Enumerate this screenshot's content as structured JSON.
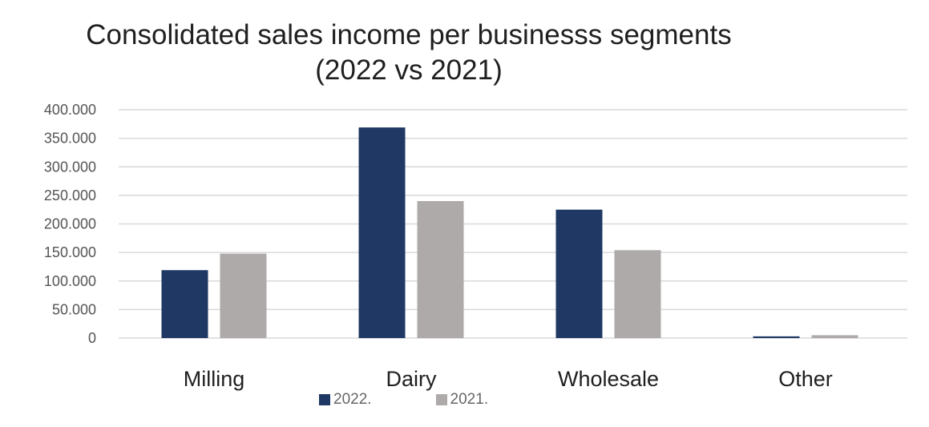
{
  "chart_data": {
    "type": "bar",
    "title": "Consolidated sales income per businesss segments",
    "subtitle": "(2022 vs 2021)",
    "categories": [
      "Milling",
      "Dairy",
      "Wholesale",
      "Other"
    ],
    "series": [
      {
        "name": "2022.",
        "color": "#1f3864",
        "values": [
          119000,
          369000,
          225000,
          3000
        ]
      },
      {
        "name": "2021.",
        "color": "#aeaaaa",
        "values": [
          148000,
          240000,
          154000,
          5000
        ]
      }
    ],
    "ylim": [
      0,
      400000
    ],
    "yticks": [
      {
        "value": 0,
        "label": "0"
      },
      {
        "value": 50000,
        "label": "50.000"
      },
      {
        "value": 100000,
        "label": "100.000"
      },
      {
        "value": 150000,
        "label": "150.000"
      },
      {
        "value": 200000,
        "label": "200.000"
      },
      {
        "value": 250000,
        "label": "250.000"
      },
      {
        "value": 300000,
        "label": "300.000"
      },
      {
        "value": 350000,
        "label": "350.000"
      },
      {
        "value": 400000,
        "label": "400.000"
      }
    ],
    "grid": true,
    "legend_position": "bottom",
    "gridline_color": "#d9d9d9"
  }
}
